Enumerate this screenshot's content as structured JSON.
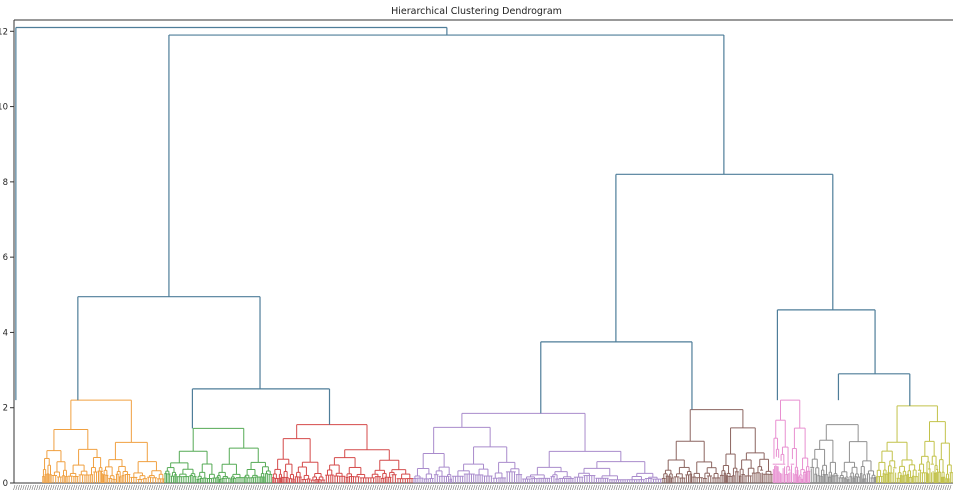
{
  "chart_data": {
    "type": "dendrogram",
    "title": "Hierarchical Clustering Dendrogram",
    "xlabel": "",
    "ylabel": "",
    "ylim": [
      0,
      12.3
    ],
    "yticks": [
      0,
      2,
      4,
      6,
      8,
      10,
      12
    ],
    "ytick_labels": [
      "0",
      "2",
      "4",
      "6",
      "8",
      "10",
      "12"
    ],
    "grid": false,
    "above_threshold_color": "#4e7d99",
    "clusters": [
      {
        "color": "#f0a040",
        "x_range": [
          0.03,
          0.16
        ],
        "height": 2.2
      },
      {
        "color": "#55aa55",
        "x_range": [
          0.16,
          0.275
        ],
        "height": 1.45
      },
      {
        "color": "#d44a4a",
        "x_range": [
          0.275,
          0.425
        ],
        "height": 1.55
      },
      {
        "color": "#a98bcc",
        "x_range": [
          0.425,
          0.69
        ],
        "height": 1.85
      },
      {
        "color": "#8c6560",
        "x_range": [
          0.69,
          0.808
        ],
        "height": 1.95
      },
      {
        "color": "#e88fd0",
        "x_range": [
          0.808,
          0.848
        ],
        "height": 2.2
      },
      {
        "color": "#909090",
        "x_range": [
          0.848,
          0.918
        ],
        "height": 1.55
      },
      {
        "color": "#c2c24a",
        "x_range": [
          0.918,
          1.0
        ],
        "height": 2.05
      }
    ],
    "merges": [
      {
        "left_x": 0.068,
        "right_x": 0.262,
        "height": 4.95
      },
      {
        "left_x": 0.19,
        "right_x": 0.336,
        "height": 2.5
      },
      {
        "left_x": 0.561,
        "right_x": 0.722,
        "height": 3.75
      },
      {
        "left_x": 0.813,
        "right_x": 0.917,
        "height": 4.6
      },
      {
        "left_x": 0.878,
        "right_x": 0.954,
        "height": 2.9
      },
      {
        "left_x": 0.641,
        "right_x": 0.872,
        "height": 8.2
      },
      {
        "left_x": 0.165,
        "right_x": 0.756,
        "height": 11.9
      },
      {
        "left_x": 0.002,
        "right_x": 0.461,
        "height": 12.1
      }
    ]
  }
}
